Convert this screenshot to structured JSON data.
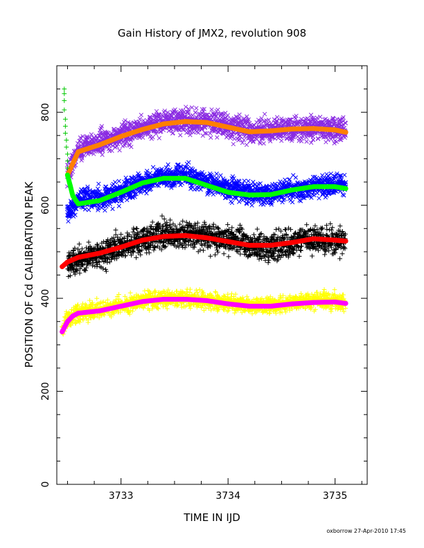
{
  "chart_data": {
    "type": "scatter",
    "title": "Gain History of JMX2, revolution 908",
    "xlabel": "TIME IN IJD",
    "ylabel": "POSITION OF Cd CALIBRATION PEAK",
    "xlim": [
      3732.4,
      3735.3
    ],
    "ylim": [
      0,
      900
    ],
    "xticks": [
      3733,
      3734,
      3735
    ],
    "yticks": [
      0,
      200,
      400,
      600,
      800
    ],
    "grid": false,
    "legend": "none",
    "footer": "oxborrow 27-Apr-2010 17:45",
    "series": [
      {
        "marker": "x",
        "color": "#8a2be2",
        "scatter": 22,
        "density": 4,
        "x": [
          3732.5,
          3732.6,
          3732.8,
          3733.0,
          3733.2,
          3733.4,
          3733.6,
          3733.8,
          3734.0,
          3734.2,
          3734.4,
          3734.6,
          3734.8,
          3735.0,
          3735.1
        ],
        "y": [
          665,
          720,
          735,
          750,
          765,
          778,
          780,
          780,
          770,
          760,
          760,
          765,
          765,
          765,
          760
        ]
      },
      {
        "marker": "line",
        "color": "#ff7f00",
        "x": [
          3732.5,
          3732.6,
          3732.8,
          3733.0,
          3733.2,
          3733.4,
          3733.6,
          3733.8,
          3734.0,
          3734.2,
          3734.4,
          3734.6,
          3734.8,
          3735.0,
          3735.1
        ],
        "y": [
          665,
          715,
          730,
          748,
          763,
          775,
          780,
          778,
          768,
          758,
          760,
          764,
          765,
          762,
          757
        ]
      },
      {
        "marker": "x",
        "color": "#0000ff",
        "scatter": 20,
        "density": 4,
        "x": [
          3732.5,
          3732.6,
          3732.8,
          3733.0,
          3733.2,
          3733.4,
          3733.6,
          3733.8,
          3734.0,
          3734.2,
          3734.4,
          3734.6,
          3734.8,
          3735.0,
          3735.1
        ],
        "y": [
          580,
          610,
          615,
          630,
          650,
          660,
          665,
          650,
          635,
          625,
          625,
          635,
          640,
          645,
          640
        ]
      },
      {
        "marker": "line",
        "color": "#00ff00",
        "x": [
          3732.5,
          3732.55,
          3732.6,
          3732.8,
          3733.0,
          3733.2,
          3733.4,
          3733.6,
          3733.8,
          3734.0,
          3734.2,
          3734.4,
          3734.6,
          3734.8,
          3735.0,
          3735.1
        ],
        "y": [
          665,
          620,
          603,
          610,
          628,
          648,
          658,
          658,
          643,
          628,
          622,
          623,
          633,
          640,
          640,
          636
        ]
      },
      {
        "marker": "+",
        "color": "#00c800",
        "scatter": 0,
        "density": 1,
        "x": [
          3732.47,
          3732.47,
          3732.47,
          3732.47,
          3732.48,
          3732.48,
          3732.48,
          3732.49,
          3732.49,
          3732.5,
          3732.5,
          3732.5
        ],
        "y": [
          850,
          840,
          825,
          805,
          785,
          770,
          755,
          740,
          725,
          710,
          695,
          680
        ]
      },
      {
        "marker": "+",
        "color": "#000000",
        "scatter": 26,
        "density": 4,
        "x": [
          3732.5,
          3732.6,
          3732.8,
          3733.0,
          3733.2,
          3733.4,
          3733.6,
          3733.8,
          3734.0,
          3734.2,
          3734.4,
          3734.6,
          3734.8,
          3735.0,
          3735.1
        ],
        "y": [
          470,
          485,
          495,
          510,
          525,
          535,
          540,
          535,
          525,
          515,
          510,
          520,
          525,
          525,
          520
        ]
      },
      {
        "marker": "line",
        "color": "#ff0000",
        "x": [
          3732.45,
          3732.5,
          3732.6,
          3732.8,
          3733.0,
          3733.2,
          3733.4,
          3733.6,
          3733.8,
          3734.0,
          3734.2,
          3734.4,
          3734.6,
          3734.8,
          3735.0,
          3735.1
        ],
        "y": [
          468,
          478,
          488,
          497,
          510,
          525,
          533,
          535,
          530,
          522,
          514,
          514,
          520,
          528,
          525,
          523
        ]
      },
      {
        "marker": "+",
        "color": "#ffff00",
        "scatter": 16,
        "density": 4,
        "x": [
          3732.45,
          3732.5,
          3732.6,
          3732.8,
          3733.0,
          3733.2,
          3733.4,
          3733.6,
          3733.8,
          3734.0,
          3734.2,
          3734.4,
          3734.6,
          3734.8,
          3735.0,
          3735.1
        ],
        "y": [
          330,
          355,
          370,
          375,
          385,
          395,
          400,
          400,
          395,
          390,
          385,
          385,
          390,
          395,
          395,
          390
        ]
      },
      {
        "marker": "line",
        "color": "#ff00ff",
        "x": [
          3732.45,
          3732.5,
          3732.55,
          3732.6,
          3732.8,
          3733.0,
          3733.2,
          3733.4,
          3733.6,
          3733.8,
          3734.0,
          3734.2,
          3734.4,
          3734.6,
          3734.8,
          3735.0,
          3735.1
        ],
        "y": [
          328,
          350,
          362,
          368,
          373,
          383,
          393,
          398,
          398,
          395,
          388,
          383,
          383,
          388,
          391,
          392,
          389
        ]
      }
    ]
  }
}
